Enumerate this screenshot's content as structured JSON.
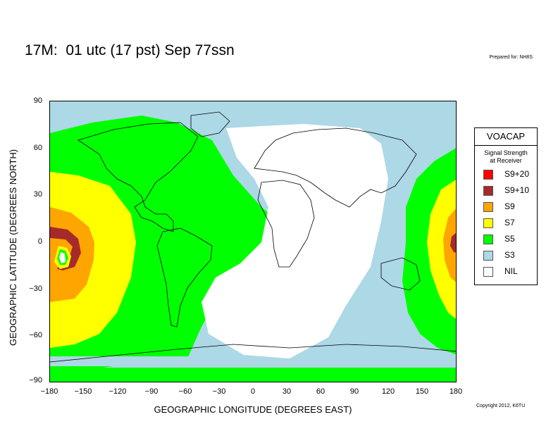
{
  "title": "17M:  01 utc (17 pst) Sep 77ssn",
  "prepared": "Prepared for: NH8S",
  "copyright": "Copyright 2012, K6TU",
  "axes": {
    "xlabel": "GEOGRAPHIC LONGITUDE (DEGREES EAST)",
    "ylabel": "GEOGRAPHIC LATITUDE (DEGREES NORTH)",
    "xticks": [
      "−180",
      "−150",
      "−120",
      "−90",
      "−60",
      "−30",
      "0",
      "30",
      "60",
      "90",
      "120",
      "150",
      "180"
    ],
    "yticks": [
      "90",
      "60",
      "30",
      "0",
      "−30",
      "−60",
      "−90"
    ]
  },
  "legend": {
    "title": "VOACAP",
    "subtitle_1": "Signal Strength",
    "subtitle_2": "at Receiver",
    "items": [
      {
        "label": "S9+20",
        "color": "#ff0000"
      },
      {
        "label": "S9+10",
        "color": "#a52a2a"
      },
      {
        "label": "S9",
        "color": "#ffa500"
      },
      {
        "label": "S7",
        "color": "#ffff00"
      },
      {
        "label": "S5",
        "color": "#00ff00"
      },
      {
        "label": "S3",
        "color": "#add8e6"
      },
      {
        "label": "NIL",
        "color": "#ffffff"
      }
    ]
  },
  "colors": {
    "ocean": "#add8e6",
    "coast": "#000000"
  }
}
